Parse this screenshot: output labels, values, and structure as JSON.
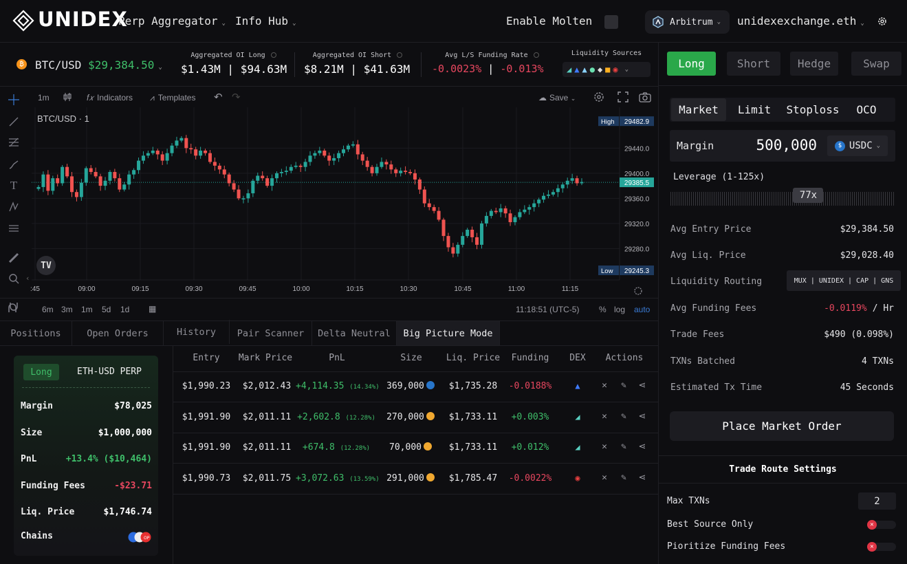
{
  "header": {
    "brand": "UNIDEX",
    "nav": [
      {
        "label": "Perp Aggregator"
      },
      {
        "label": "Info Hub"
      }
    ],
    "enable_molten": "Enable Molten",
    "network": "Arbitrum",
    "account": "unidexexchange.eth"
  },
  "ticker": {
    "pair": "BTC/USD",
    "price": "$29,384.50",
    "oi_long_label": "Aggregated OI Long",
    "oi_long": "$1.43M | $94.63M",
    "oi_short_label": "Aggregated OI Short",
    "oi_short": "$8.21M | $41.63M",
    "funding_label": "Avg L/S Funding Rate",
    "funding_long": "-0.0023%",
    "funding_sep": "|",
    "funding_short": "-0.013%",
    "liq_label": "Liquidity Sources"
  },
  "chart_toolbar": {
    "interval": "1m",
    "indicators": "Indicators",
    "templates": "Templates",
    "save": "Save"
  },
  "chart_data": {
    "type": "candlestick",
    "title": "BTC/USD · 1",
    "xlabels": [
      ":45",
      "09:00",
      "09:15",
      "09:30",
      "09:45",
      "10:00",
      "10:15",
      "10:30",
      "10:45",
      "11:00",
      "11:15"
    ],
    "ylabels": [
      "29440.0",
      "29400.0",
      "29360.0",
      "29320.0",
      "29280.0"
    ],
    "ylim": [
      29230,
      29505
    ],
    "high_label": "High",
    "high": "29482.9",
    "last": "29385.5",
    "low_label": "Low",
    "low": "29245.3",
    "up_color": "#26a69a",
    "down_color": "#ef5350",
    "closes": [
      29378,
      29398,
      29372,
      29392,
      29384,
      29410,
      29395,
      29370,
      29362,
      29385,
      29408,
      29402,
      29395,
      29380,
      29388,
      29402,
      29392,
      29374,
      29382,
      29398,
      29405,
      29420,
      29428,
      29432,
      29436,
      29430,
      29420,
      29432,
      29444,
      29452,
      29456,
      29440,
      29438,
      29428,
      29436,
      29432,
      29418,
      29412,
      29406,
      29398,
      29384,
      29374,
      29360,
      29360,
      29368,
      29388,
      29396,
      29392,
      29380,
      29392,
      29400,
      29402,
      29404,
      29410,
      29412,
      29410,
      29418,
      29428,
      29432,
      29436,
      29428,
      29420,
      29424,
      29432,
      29438,
      29444,
      29446,
      29430,
      29420,
      29410,
      29400,
      29410,
      29418,
      29414,
      29406,
      29400,
      29404,
      29402,
      29400,
      29390,
      29374,
      29352,
      29346,
      29340,
      29326,
      29300,
      29282,
      29272,
      29286,
      29300,
      29310,
      29298,
      29286,
      29320,
      29332,
      29340,
      29338,
      29344,
      29336,
      29322,
      29330,
      29338,
      29342,
      29346,
      29352,
      29358,
      29364,
      29366,
      29370,
      29376,
      29382,
      29388,
      29392,
      29384,
      29386
    ],
    "timestamp": "11:18:51 (UTC-5)",
    "range_buttons": [
      "6m",
      "3m",
      "1m",
      "5d",
      "1d"
    ],
    "scale": [
      "%",
      "log",
      "auto"
    ]
  },
  "bottom_tabs": [
    "Positions",
    "Open Orders",
    "History",
    "Pair Scanner",
    "Delta Neutral",
    "Big Picture Mode"
  ],
  "position_card": {
    "side": "Long",
    "market": "ETH-USD PERP",
    "rows": [
      {
        "label": "Margin",
        "value": "$78,025"
      },
      {
        "label": "Size",
        "value": "$1,000,000"
      },
      {
        "label": "PnL",
        "value": "+13.4% ($10,464)"
      },
      {
        "label": "Funding Fees",
        "value": "-$23.71"
      },
      {
        "label": "Liq. Price",
        "value": "$1,746.74"
      },
      {
        "label": "Chains",
        "value": ""
      }
    ]
  },
  "table": {
    "headers": [
      "Entry",
      "Mark Price",
      "PnL",
      "Size",
      "Liq. Price",
      "Funding",
      "DEX",
      "Actions"
    ],
    "rows": [
      {
        "entry": "$1,990.23",
        "mark": "$2,012.43",
        "pnl": "+4,114.35",
        "pnl_pct": "(14.34%)",
        "size": "369,000",
        "liq": "$1,735.28",
        "funding": "-0.0188%"
      },
      {
        "entry": "$1,991.90",
        "mark": "$2,011.11",
        "pnl": "+2,602.8",
        "pnl_pct": "(12.28%)",
        "size": "270,000",
        "liq": "$1,733.11",
        "funding": "+0.003%"
      },
      {
        "entry": "$1,991.90",
        "mark": "$2,011.11",
        "pnl": "+674.8",
        "pnl_pct": "(12.28%)",
        "size": "70,000",
        "liq": "$1,733.11",
        "funding": "+0.012%"
      },
      {
        "entry": "$1,990.73",
        "mark": "$2,011.75",
        "pnl": "+3,072.63",
        "pnl_pct": "(13.59%)",
        "size": "291,000",
        "liq": "$1,785.47",
        "funding": "-0.0022%"
      }
    ]
  },
  "trade": {
    "side_tabs": [
      "Long",
      "Short",
      "Hedge",
      "Swap"
    ],
    "order_tabs": [
      "Market",
      "Limit",
      "Stoploss",
      "OCO"
    ],
    "margin_label": "Margin",
    "margin_value": "500,000",
    "token": "USDC",
    "leverage_label": "Leverage (1-125x)",
    "leverage": "77x",
    "leverage_fraction": 0.613,
    "rows": [
      {
        "label": "Avg Entry Price",
        "value": "$29,384.50"
      },
      {
        "label": "Avg Liq. Price",
        "value": "$29,028.40"
      },
      {
        "label": "Liquidity Routing",
        "value": "MUX | UNIDEX | CAP | GNS"
      },
      {
        "label": "Avg Funding Fees",
        "value": "-0.0119%",
        "unit": "/ Hr"
      },
      {
        "label": "Trade Fees",
        "value": "$490 (0.098%)"
      },
      {
        "label": "TXNs Batched",
        "value": "4 TXNs"
      },
      {
        "label": "Estimated Tx Time",
        "value": "45 Seconds"
      }
    ],
    "place_order": "Place Market Order"
  },
  "route_settings": {
    "title": "Trade Route Settings",
    "max_txns_label": "Max TXNs",
    "max_txns": "2",
    "best_source": "Best Source Only",
    "prioritize": "Pioritize Funding Fees"
  }
}
